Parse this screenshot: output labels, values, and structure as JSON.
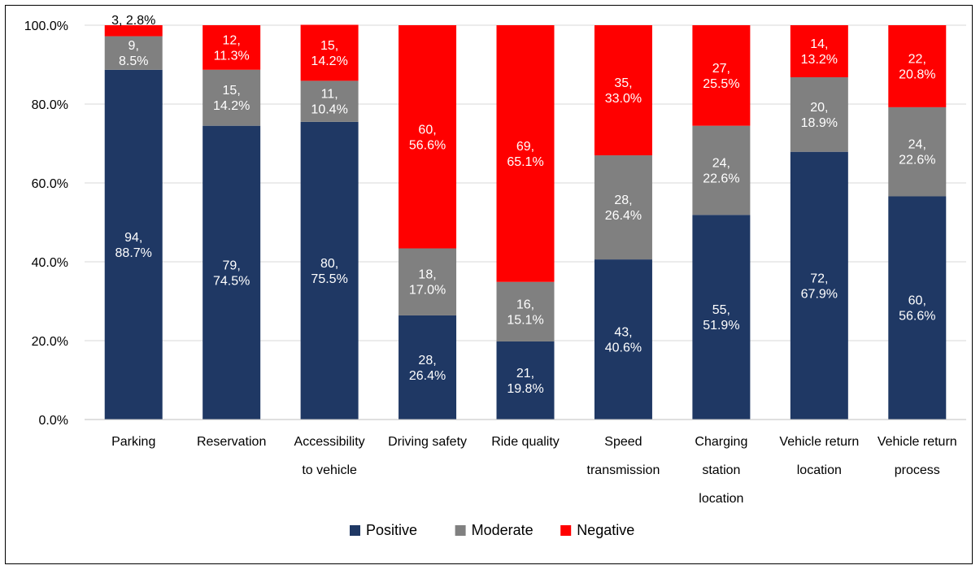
{
  "chart_data": {
    "type": "bar",
    "stacked": true,
    "percent": true,
    "title": "",
    "xlabel": "",
    "ylabel": "",
    "ylim": [
      0,
      100
    ],
    "yticks": [
      "0.0%",
      "20.0%",
      "40.0%",
      "60.0%",
      "80.0%",
      "100.0%"
    ],
    "grid": true,
    "legend_position": "bottom",
    "categories": [
      [
        "Parking"
      ],
      [
        "Reservation"
      ],
      [
        "Accessibility",
        "to vehicle"
      ],
      [
        "Driving safety"
      ],
      [
        "Ride quality"
      ],
      [
        "Speed",
        "transmission"
      ],
      [
        "Charging",
        "station",
        "location"
      ],
      [
        "Vehicle return",
        "location"
      ],
      [
        "Vehicle return",
        "process"
      ]
    ],
    "series": [
      {
        "name": "Positive",
        "color": "#1f3864",
        "counts": [
          94,
          79,
          80,
          28,
          21,
          43,
          55,
          72,
          60
        ],
        "labels": [
          "88.7%",
          "74.5%",
          "75.5%",
          "26.4%",
          "19.8%",
          "40.6%",
          "51.9%",
          "67.9%",
          "56.6%"
        ],
        "values": [
          88.7,
          74.5,
          75.5,
          26.4,
          19.8,
          40.6,
          51.9,
          67.9,
          56.6
        ]
      },
      {
        "name": "Moderate",
        "color": "#808080",
        "counts": [
          9,
          15,
          11,
          18,
          16,
          28,
          24,
          20,
          24
        ],
        "labels": [
          "8.5%",
          "14.2%",
          "10.4%",
          "17.0%",
          "15.1%",
          "26.4%",
          "22.6%",
          "18.9%",
          "22.6%"
        ],
        "values": [
          8.5,
          14.2,
          10.4,
          17.0,
          15.1,
          26.4,
          22.6,
          18.9,
          22.6
        ]
      },
      {
        "name": "Negative",
        "color": "#ff0000",
        "counts": [
          3,
          12,
          15,
          60,
          69,
          35,
          27,
          14,
          22
        ],
        "labels": [
          "2.8%",
          "11.3%",
          "14.2%",
          "56.6%",
          "65.1%",
          "33.0%",
          "25.5%",
          "13.2%",
          "20.8%"
        ],
        "values": [
          2.8,
          11.3,
          14.2,
          56.6,
          65.1,
          33.0,
          25.5,
          13.2,
          20.8
        ]
      }
    ]
  }
}
